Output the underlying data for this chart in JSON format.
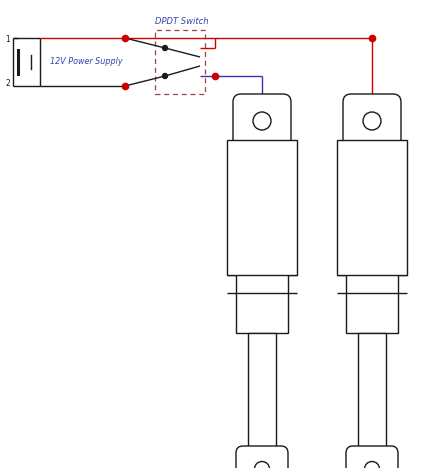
{
  "bg_color": "#ffffff",
  "black": "#1a1a1a",
  "red": "#cc0000",
  "blue": "#3333bb",
  "dashed_color": "#994444",
  "dpdt_label": "DPDT Switch",
  "power_label": "12V Power Supply",
  "fig_width": 4.38,
  "fig_height": 4.68,
  "dpi": 100,
  "xlim": [
    0,
    4.38
  ],
  "ylim": [
    0,
    4.68
  ]
}
